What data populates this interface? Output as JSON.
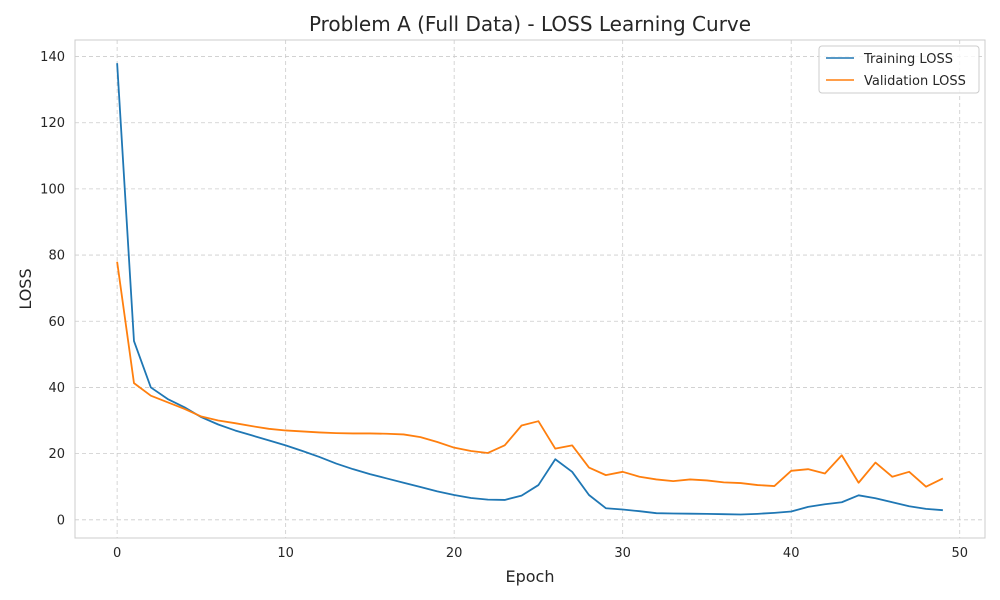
{
  "chart_data": {
    "type": "line",
    "title": "Problem A (Full Data) - LOSS Learning Curve",
    "xlabel": "Epoch",
    "ylabel": "LOSS",
    "xlim": [
      -2.5,
      51.5
    ],
    "ylim": [
      -5.5,
      145
    ],
    "xticks": [
      0,
      10,
      20,
      30,
      40,
      50
    ],
    "yticks": [
      0,
      20,
      40,
      60,
      80,
      100,
      120,
      140
    ],
    "grid": true,
    "legend_position": "top-right",
    "x": [
      0,
      1,
      2,
      3,
      4,
      5,
      6,
      7,
      8,
      9,
      10,
      11,
      12,
      13,
      14,
      15,
      16,
      17,
      18,
      19,
      20,
      21,
      22,
      23,
      24,
      25,
      26,
      27,
      28,
      29,
      30,
      31,
      32,
      33,
      34,
      35,
      36,
      37,
      38,
      39,
      40,
      41,
      42,
      43,
      44,
      45,
      46,
      47,
      48,
      49
    ],
    "series": [
      {
        "name": "Training LOSS",
        "color": "#1f77b4",
        "values": [
          138,
          54,
          40,
          36.5,
          34,
          31,
          28.8,
          27,
          25.5,
          24,
          22.5,
          20.8,
          19,
          17,
          15.3,
          13.8,
          12.5,
          11.2,
          9.9,
          8.6,
          7.5,
          6.6,
          6.1,
          6.0,
          7.3,
          10.5,
          18.3,
          14.5,
          7.5,
          3.5,
          3.1,
          2.6,
          2.0,
          1.9,
          1.85,
          1.8,
          1.7,
          1.6,
          1.8,
          2.1,
          2.5,
          3.9,
          4.7,
          5.3,
          7.4,
          6.5,
          5.3,
          4.1,
          3.3,
          2.9
        ]
      },
      {
        "name": "Validation LOSS",
        "color": "#ff7f0e",
        "values": [
          78,
          41.3,
          37.5,
          35.5,
          33.5,
          31.2,
          30.0,
          29.2,
          28.3,
          27.5,
          27.0,
          26.7,
          26.4,
          26.2,
          26.1,
          26.1,
          26.0,
          25.8,
          25.0,
          23.5,
          21.8,
          20.8,
          20.2,
          22.5,
          28.5,
          29.8,
          21.5,
          22.5,
          15.8,
          13.5,
          14.5,
          13.0,
          12.2,
          11.7,
          12.2,
          11.9,
          11.3,
          11.1,
          10.5,
          10.2,
          14.8,
          15.3,
          14.0,
          19.5,
          11.2,
          17.3,
          13.0,
          14.5,
          10.0,
          12.5
        ]
      }
    ]
  }
}
